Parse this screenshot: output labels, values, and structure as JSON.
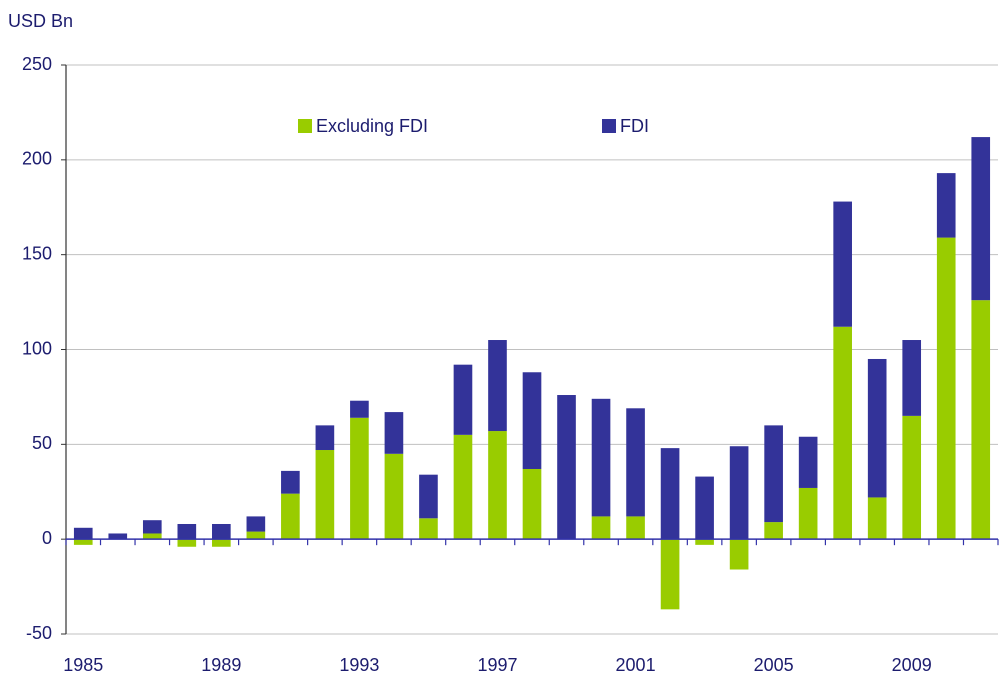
{
  "chart_data": {
    "type": "stacked_bar",
    "y_axis_label": "USD Bn",
    "categories": [
      "1985",
      null,
      null,
      null,
      "1989",
      null,
      null,
      null,
      "1993",
      null,
      null,
      null,
      "1997",
      null,
      null,
      null,
      "2001",
      null,
      null,
      null,
      "2005",
      null,
      null,
      null,
      "2009",
      null,
      null
    ],
    "series": [
      {
        "name": "Excluding FDI",
        "color": "#99cc00",
        "values": [
          -3,
          0,
          3,
          -4,
          -4,
          4,
          24,
          47,
          64,
          45,
          11,
          55,
          57,
          37,
          0,
          12,
          12,
          -37,
          -3,
          -16,
          9,
          27,
          112,
          22,
          65,
          159,
          126
        ]
      },
      {
        "name": "FDI",
        "color": "#333399",
        "values": [
          6,
          3,
          7,
          8,
          8,
          8,
          12,
          13,
          9,
          22,
          23,
          37,
          48,
          51,
          76,
          62,
          57,
          48,
          33,
          49,
          51,
          27,
          66,
          73,
          40,
          34,
          86
        ]
      }
    ],
    "ylim": [
      -50,
      250
    ],
    "yticks": [
      -50,
      0,
      50,
      100,
      150,
      200,
      250
    ],
    "grid": true
  }
}
